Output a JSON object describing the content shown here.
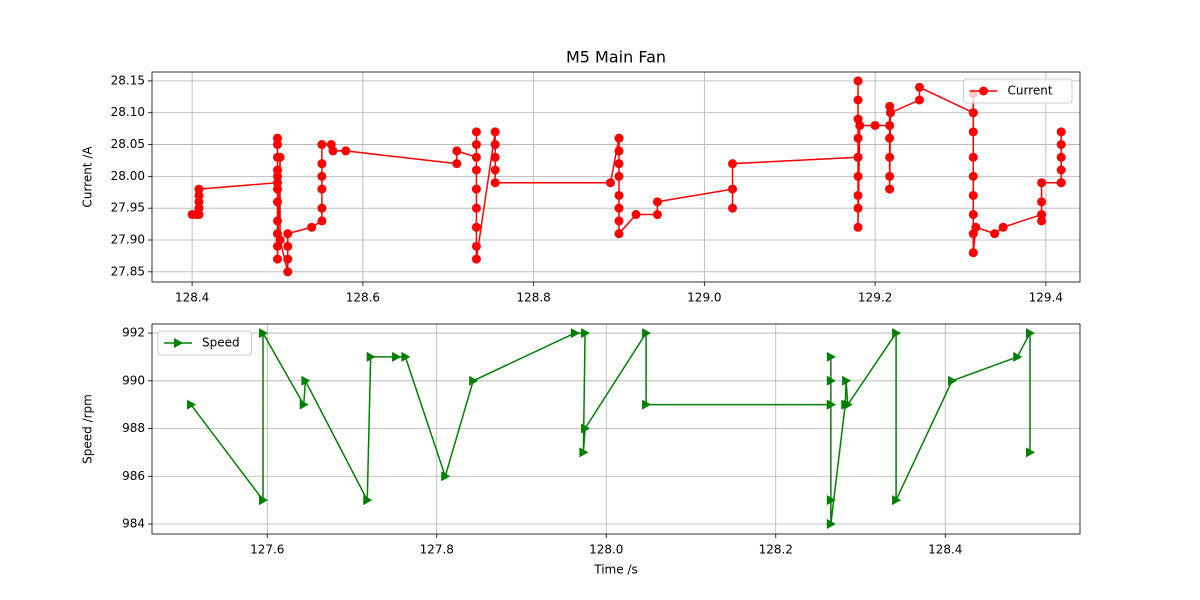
{
  "chart_data": [
    {
      "type": "line",
      "title": "M5 Main Fan",
      "ylabel": "Current /A",
      "x": [
        128.4,
        128.405,
        128.408,
        128.408,
        128.408,
        128.408,
        128.408,
        128.5,
        128.5,
        128.5,
        128.5,
        128.5,
        128.5,
        128.5,
        128.5,
        128.5,
        128.5,
        128.5,
        128.5,
        128.503,
        128.503,
        128.512,
        128.512,
        128.512,
        128.512,
        128.54,
        128.552,
        128.552,
        128.552,
        128.552,
        128.552,
        128.552,
        128.563,
        128.565,
        128.58,
        128.71,
        128.71,
        128.733,
        128.733,
        128.733,
        128.733,
        128.733,
        128.733,
        128.733,
        128.733,
        128.733,
        128.755,
        128.755,
        128.755,
        128.755,
        128.755,
        128.89,
        128.9,
        128.9,
        128.9,
        128.9,
        128.9,
        128.9,
        128.9,
        128.9,
        128.92,
        128.945,
        128.945,
        129.033,
        129.033,
        129.033,
        129.18,
        129.18,
        129.18,
        129.18,
        129.18,
        129.18,
        129.18,
        129.18,
        129.18,
        129.18,
        129.182,
        129.2,
        129.217,
        129.217,
        129.217,
        129.217,
        129.217,
        129.217,
        129.218,
        129.252,
        129.252,
        129.315,
        129.315,
        129.315,
        129.315,
        129.315,
        129.315,
        129.315,
        129.315,
        129.315,
        129.315,
        129.318,
        129.34,
        129.35,
        129.395,
        129.395,
        129.395,
        129.395,
        129.418,
        129.418,
        129.418,
        129.418,
        129.418,
        129.418
      ],
      "series": [
        {
          "name": "Current",
          "color": "#ff0000",
          "marker": "circle",
          "values": [
            27.94,
            27.94,
            27.94,
            27.95,
            27.96,
            27.97,
            27.98,
            27.99,
            28.06,
            28.05,
            28.03,
            28.01,
            28.0,
            27.98,
            27.96,
            27.93,
            27.91,
            27.89,
            27.87,
            28.03,
            27.9,
            27.85,
            27.87,
            27.89,
            27.91,
            27.92,
            27.93,
            27.95,
            27.98,
            28.0,
            28.02,
            28.05,
            28.05,
            28.04,
            28.04,
            28.02,
            28.04,
            28.03,
            28.07,
            28.05,
            28.01,
            27.98,
            27.95,
            27.92,
            27.89,
            27.87,
            28.07,
            28.05,
            28.03,
            28.01,
            27.99,
            27.99,
            28.06,
            28.04,
            28.02,
            28.0,
            27.97,
            27.95,
            27.93,
            27.91,
            27.94,
            27.94,
            27.96,
            27.98,
            27.95,
            28.02,
            28.03,
            28.15,
            28.12,
            28.09,
            28.06,
            28.03,
            28.0,
            27.97,
            27.95,
            27.92,
            28.08,
            28.08,
            28.08,
            28.11,
            28.06,
            28.03,
            28.0,
            27.98,
            28.1,
            28.12,
            28.14,
            28.1,
            28.13,
            28.1,
            28.07,
            28.03,
            28.0,
            27.97,
            27.94,
            27.91,
            27.88,
            27.92,
            27.91,
            27.92,
            27.94,
            27.93,
            27.96,
            27.99,
            27.99,
            28.07,
            28.05,
            28.03,
            28.01,
            27.99
          ]
        }
      ],
      "xlim": [
        128.353,
        129.44
      ],
      "ylim": [
        27.834,
        28.164
      ],
      "xticks": [
        128.4,
        128.6,
        128.8,
        {
          "value": 129,
          "label": "129.0"
        },
        129.2,
        129.4
      ],
      "yticks": [
        27.85,
        {
          "value": 27.9,
          "label": "27.90"
        },
        27.95,
        {
          "value": 28,
          "label": "28.00"
        },
        28.05,
        {
          "value": 28.1,
          "label": "28.10"
        },
        28.15
      ],
      "grid": true,
      "legend": "upper right"
    },
    {
      "type": "line",
      "xlabel": "Time /s",
      "ylabel": "Speed /rpm",
      "x": [
        127.51,
        127.595,
        127.595,
        127.643,
        127.645,
        127.718,
        127.722,
        127.752,
        127.763,
        127.81,
        127.843,
        127.963,
        127.975,
        127.973,
        127.975,
        128.047,
        128.047,
        128.265,
        128.265,
        128.265,
        128.265,
        128.265,
        128.265,
        128.282,
        128.283,
        128.285,
        128.342,
        128.342,
        128.408,
        128.485,
        128.5,
        128.5
      ],
      "series": [
        {
          "name": "Speed",
          "color": "#008000",
          "marker": "triangle-right",
          "values": [
            989,
            985,
            992,
            989,
            990,
            985,
            991,
            991,
            991,
            986,
            990,
            992,
            992,
            987,
            988,
            992,
            989,
            989,
            989,
            991,
            990,
            985,
            984,
            989,
            990,
            989,
            992,
            985,
            990,
            991,
            992,
            987
          ]
        }
      ],
      "xlim": [
        127.464,
        128.559
      ],
      "ylim": [
        983.58,
        992.38
      ],
      "xticks": [
        127.6,
        127.8,
        {
          "value": 128,
          "label": "128.0"
        },
        128.2,
        128.4
      ],
      "yticks": [
        984,
        986,
        988,
        990,
        992
      ],
      "grid": true,
      "legend": "upper left"
    }
  ]
}
